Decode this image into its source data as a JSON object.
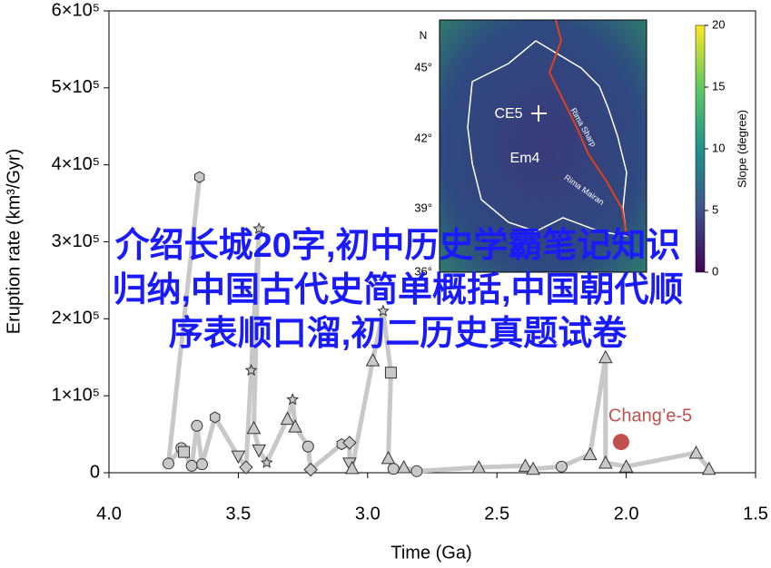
{
  "chart_data": {
    "type": "scatter",
    "x_label": "Time (Ga)",
    "y_label": "Eruption rate (km³/Gyr)",
    "xlim": [
      4.0,
      1.5
    ],
    "ylim": [
      0,
      600000
    ],
    "xticks": [
      {
        "value": 4,
        "label": "4.0"
      },
      3.5,
      {
        "value": 3,
        "label": "3.0"
      },
      2.5,
      {
        "value": 2,
        "label": "2.0"
      },
      1.5
    ],
    "yticks": [
      0,
      {
        "value": 100000,
        "label": "1×10⁵"
      },
      {
        "value": 200000,
        "label": "2×10⁵"
      },
      {
        "value": 300000,
        "label": "3×10⁵"
      },
      {
        "value": 400000,
        "label": "4×10⁵"
      },
      {
        "value": 500000,
        "label": "5×10⁵"
      },
      {
        "value": 600000,
        "label": "6×10⁵"
      }
    ],
    "line_color": "#c8c8c8",
    "series": [
      {
        "color": "#c8c8c8",
        "x": [
          3.65,
          3.77,
          3.72,
          3.71,
          3.68,
          3.66,
          3.64,
          3.59,
          3.5,
          3.47,
          3.45,
          3.42,
          3.44,
          3.42,
          3.39,
          3.31,
          3.29,
          3.28,
          3.23,
          3.22,
          3.1,
          3.07,
          3.07,
          3.06,
          2.98,
          2.94,
          2.91,
          2.92,
          2.9,
          2.86,
          2.81,
          2.57,
          2.39,
          2.36,
          2.25,
          2.14,
          2.08,
          2.08,
          2.0,
          1.73,
          1.68
        ],
        "values": [
          384000,
          12000,
          32000,
          27000,
          9000,
          61000,
          11000,
          72000,
          21000,
          7000,
          133000,
          317000,
          58000,
          29000,
          13000,
          70000,
          95000,
          60000,
          34000,
          4000,
          37000,
          39000,
          12000,
          6000,
          146000,
          210000,
          130000,
          19000,
          5000,
          7000,
          2000,
          7000,
          9000,
          5000,
          8000,
          24000,
          150000,
          13000,
          8000,
          26000,
          5000
        ],
        "markers": [
          "hexagon",
          "circle",
          "circle",
          "square",
          "circle",
          "circle",
          "circle",
          "hexagon",
          "triangle-down",
          "diamond",
          "star",
          "star",
          "triangle",
          "triangle-down",
          "star",
          "triangle",
          "star",
          "triangle",
          "circle",
          "diamond",
          "hexagon",
          "diamond",
          "triangle-down",
          "triangle",
          "triangle",
          "star",
          "square",
          "triangle",
          "circle",
          "triangle",
          "circle",
          "triangle",
          "triangle",
          "triangle",
          "circle",
          "triangle",
          "triangle",
          "triangle",
          "triangle",
          "triangle",
          "triangle"
        ]
      },
      {
        "name": "Chang’e-5",
        "color": "#c0504d",
        "x": [
          2.02
        ],
        "values": [
          40000
        ]
      }
    ],
    "inset": {
      "north": "N",
      "lat_labels": [
        "45°",
        "42°",
        "39°",
        "36°"
      ],
      "labels": [
        "CE5",
        "Em4",
        "Rima Sharp",
        "Rima Mairan"
      ],
      "colorbar_label": "Slope (degree)",
      "colorbar_ticks": [
        0,
        5,
        10,
        15,
        20
      ]
    }
  },
  "overlay_text": [
    "介绍长城20字,初中历史学霸笔记知识",
    "归纳,中国古代史简单概括,中国朝代顺",
    "序表顺口溜,初二历史真题试卷"
  ]
}
